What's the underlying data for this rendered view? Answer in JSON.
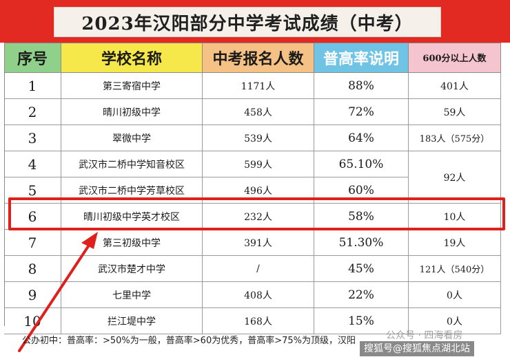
{
  "title": "2023年汉阳部分中学考试成绩（中考）",
  "headers": {
    "index": "序号",
    "school": "学校名称",
    "applicants": "中考报名人数",
    "rate": "普高率说明",
    "over600": "600分以上人数"
  },
  "rows": [
    {
      "index": "1",
      "school": "第三寄宿中学",
      "applicants": "1171人",
      "rate": "88%",
      "over600": "401人"
    },
    {
      "index": "2",
      "school": "晴川初级中学",
      "applicants": "458人",
      "rate": "72%",
      "over600": "59人"
    },
    {
      "index": "3",
      "school": "翠微中学",
      "applicants": "539人",
      "rate": "64%",
      "over600": "183人（575分）"
    },
    {
      "index": "4",
      "school": "武汉市二桥中学知音校区",
      "applicants": "599人",
      "rate": "65.10%",
      "over600": ""
    },
    {
      "index": "5",
      "school": "武汉市二桥中学芳草校区",
      "applicants": "496人",
      "rate": "60%",
      "over600": ""
    },
    {
      "index": "6",
      "school": "晴川初级中学英才校区",
      "applicants": "232人",
      "rate": "58%",
      "over600": "10人"
    },
    {
      "index": "7",
      "school": "第三初级中学",
      "applicants": "391人",
      "rate": "51.30%",
      "over600": "19人"
    },
    {
      "index": "8",
      "school": "武汉市楚才中学",
      "applicants": "/",
      "rate": "45%",
      "over600": "121人（540分）"
    },
    {
      "index": "9",
      "school": "七里中学",
      "applicants": "408人",
      "rate": "22%",
      "over600": "0人"
    },
    {
      "index": "10",
      "school": "拦江堤中学",
      "applicants": "168人",
      "rate": "15%",
      "over600": "0人"
    }
  ],
  "merged_over600_rows_4_5": "92人",
  "footnote": "公办初中：普高率：>50%为一般，普高率>60为优秀，普高率>75%为顶级，汉阳",
  "watermark": "公众号 · 四海看房",
  "watermark_bottom": "搜狐号@搜狐焦点湖北站",
  "colors": {
    "title_bg": "#e32a22",
    "h_index": "#8fd18a",
    "h_school": "#f6e84a",
    "h_applicants": "#f5c184",
    "h_rate": "#6fc3e4",
    "h_over600": "#f4c4cf",
    "highlight": "#e0201c"
  }
}
